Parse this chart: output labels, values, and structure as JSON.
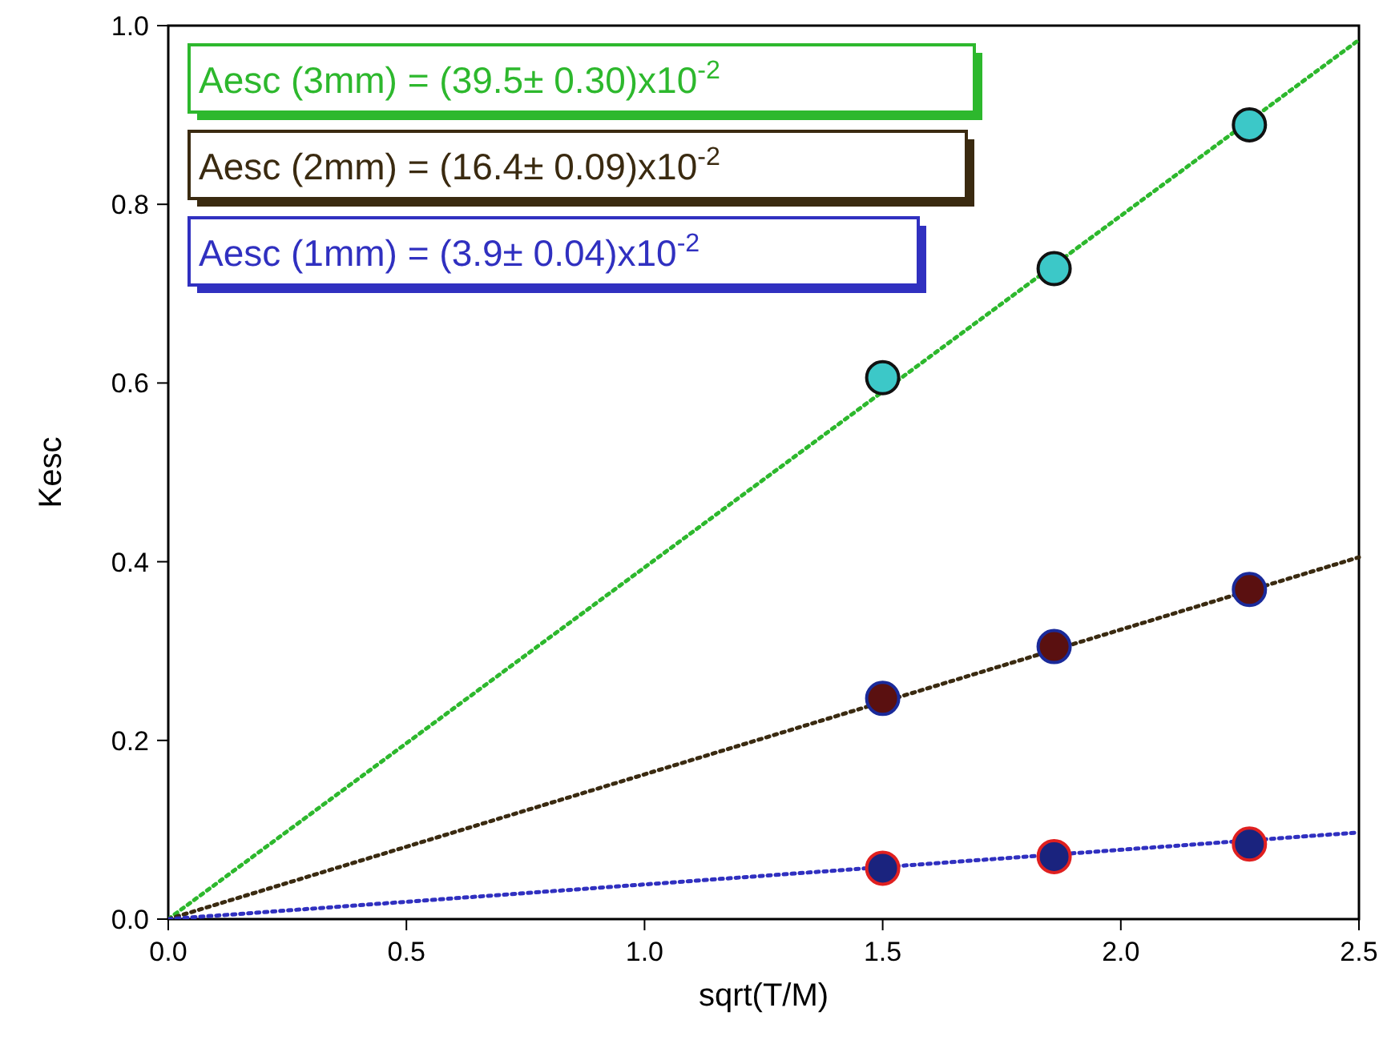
{
  "chart_data": {
    "type": "scatter",
    "xlabel": "sqrt(T/M)",
    "ylabel": "Kesc",
    "xlim": [
      0,
      2.5
    ],
    "xticks": [
      {
        "value": 0,
        "label": "0.0"
      },
      0.5,
      {
        "value": 1,
        "label": "1.0"
      },
      1.5,
      {
        "value": 2,
        "label": "2.0"
      },
      2.5
    ],
    "ylim": [
      0,
      1
    ],
    "yticks": [
      {
        "value": 0,
        "label": "0.0"
      },
      0.2,
      0.4,
      0.6,
      0.8,
      {
        "value": 1,
        "label": "1.0"
      }
    ],
    "grid": false,
    "annotations": [
      "Aesc (3mm) = (39.5± 0.30)x10$^{-2}$",
      "Aesc (2mm) = (16.4± 0.09)x10$^{-2}$",
      "Aesc (1mm) = (3.9± 0.04)x10$^{-2}$"
    ],
    "series": [
      {
        "type": "line",
        "line_style": "dotted",
        "color": "#2db82d",
        "x": [
          0,
          2.5
        ],
        "values": [
          0,
          0.984
        ]
      },
      {
        "type": "line",
        "line_style": "dotted",
        "color": "#3a2a10",
        "x": [
          0,
          2.5
        ],
        "values": [
          0,
          0.405
        ]
      },
      {
        "type": "line",
        "line_style": "dotted",
        "color": "#3030c0",
        "x": [
          0,
          2.5
        ],
        "values": [
          0,
          0.097
        ]
      },
      {
        "marker": "circle",
        "color": "#3cc8c8",
        "x": [
          1.5,
          1.86,
          2.27
        ],
        "values": [
          0.606,
          0.728,
          0.889
        ]
      },
      {
        "marker": "circle",
        "color": "#5a1010",
        "x": [
          1.5,
          1.86,
          2.27
        ],
        "values": [
          0.247,
          0.305,
          0.369
        ]
      },
      {
        "marker": "circle",
        "color": "#1a237e",
        "x": [
          1.5,
          1.86,
          2.27
        ],
        "values": [
          0.057,
          0.07,
          0.084
        ]
      }
    ]
  }
}
